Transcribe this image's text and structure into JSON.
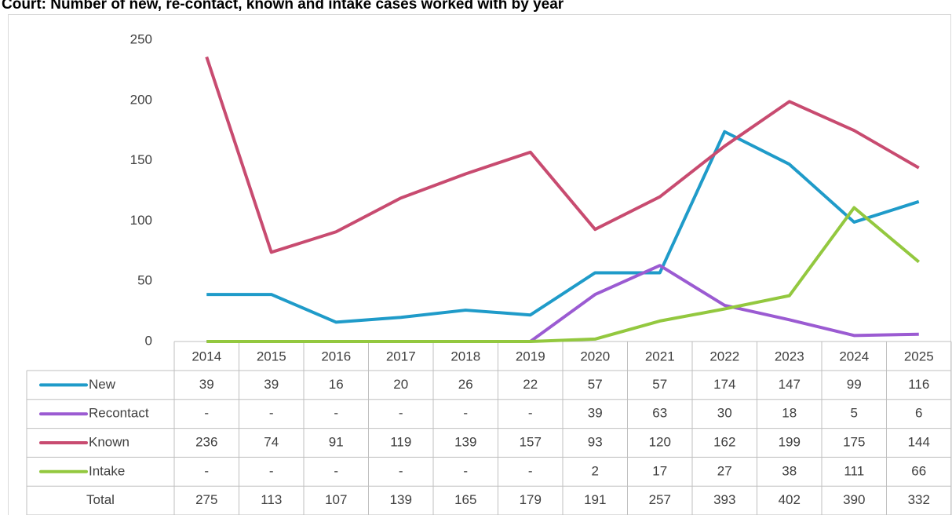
{
  "chart_data": {
    "type": "line",
    "title": "Court: Number of new, re-contact, known and intake cases worked with by year",
    "categories": [
      "2014",
      "2015",
      "2016",
      "2017",
      "2018",
      "2019",
      "2020",
      "2021",
      "2022",
      "2023",
      "2024",
      "2025"
    ],
    "series": [
      {
        "name": "New",
        "color": "#1f9bc9",
        "values": [
          39,
          39,
          16,
          20,
          26,
          22,
          57,
          57,
          174,
          147,
          99,
          116
        ]
      },
      {
        "name": "Recontact",
        "color": "#9b5bd2",
        "values": [
          0,
          0,
          0,
          0,
          0,
          0,
          39,
          63,
          30,
          18,
          5,
          6
        ],
        "value_labels": [
          "-",
          "-",
          "-",
          "-",
          "-",
          "-",
          "39",
          "63",
          "30",
          "18",
          "5",
          "6"
        ]
      },
      {
        "name": "Known",
        "color": "#c84b70",
        "values": [
          236,
          74,
          91,
          119,
          139,
          157,
          93,
          120,
          162,
          199,
          175,
          144
        ]
      },
      {
        "name": "Intake",
        "color": "#93c83f",
        "values": [
          0,
          0,
          0,
          0,
          0,
          0,
          2,
          17,
          27,
          38,
          111,
          66
        ],
        "value_labels": [
          "-",
          "-",
          "-",
          "-",
          "-",
          "-",
          "2",
          "17",
          "27",
          "38",
          "111",
          "66"
        ]
      }
    ],
    "total": {
      "name": "Total",
      "values": [
        275,
        113,
        107,
        139,
        165,
        179,
        191,
        257,
        393,
        402,
        390,
        332
      ]
    },
    "ylim": [
      0,
      250
    ],
    "yticks": [
      0,
      50,
      100,
      150,
      200,
      250
    ],
    "grid": false
  }
}
